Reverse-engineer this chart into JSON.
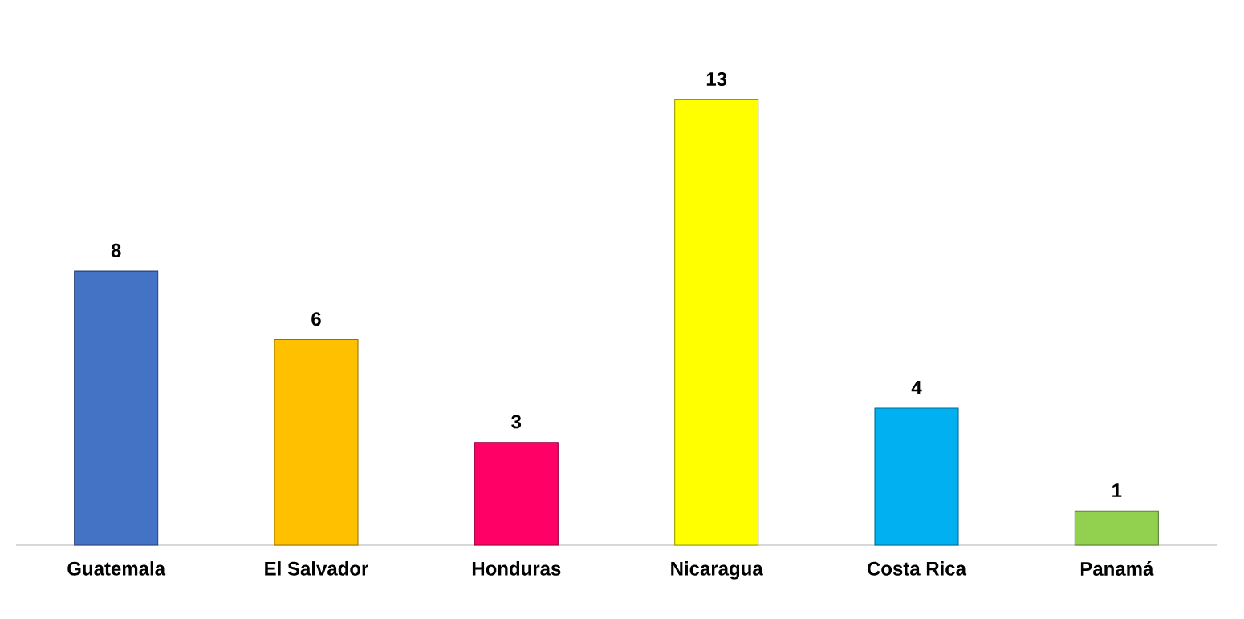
{
  "chart_data": {
    "type": "bar",
    "categories": [
      "Guatemala",
      "El Salvador",
      "Honduras",
      "Nicaragua",
      "Costa Rica",
      "Panamá"
    ],
    "values": [
      8,
      6,
      3,
      13,
      4,
      1
    ],
    "colors": [
      "#4472c4",
      "#ffc000",
      "#ff0066",
      "#ffff00",
      "#00b0f0",
      "#92d050"
    ],
    "data_labels": true,
    "tick_labels": "x"
  }
}
